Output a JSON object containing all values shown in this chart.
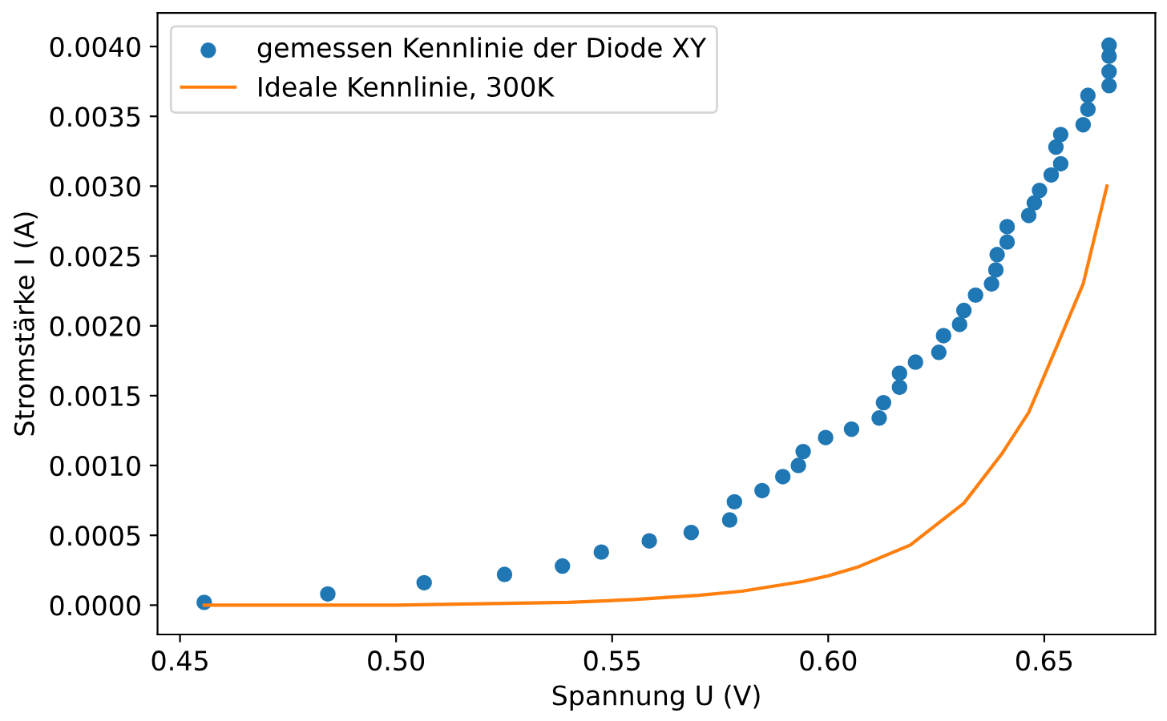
{
  "chart_data": {
    "type": "scatter",
    "xlabel": "Spannung U (V)",
    "ylabel": "Stromstärke I (A)",
    "xlim": [
      0.4448,
      0.6757
    ],
    "ylim": [
      -0.00021,
      0.00424
    ],
    "xticks": [
      {
        "value": 0.45,
        "label": "0.45"
      },
      {
        "value": 0.5,
        "label": "0.50"
      },
      {
        "value": 0.55,
        "label": "0.55"
      },
      {
        "value": 0.6,
        "label": "0.60"
      },
      {
        "value": 0.65,
        "label": "0.65"
      }
    ],
    "yticks": [
      {
        "value": 0,
        "label": "0.0000"
      },
      {
        "value": 0.0005,
        "label": "0.0005"
      },
      {
        "value": 0.001,
        "label": "0.0010"
      },
      {
        "value": 0.0015,
        "label": "0.0015"
      },
      {
        "value": 0.002,
        "label": "0.0020"
      },
      {
        "value": 0.0025,
        "label": "0.0025"
      },
      {
        "value": 0.003,
        "label": "0.0030"
      },
      {
        "value": 0.0035,
        "label": "0.0035"
      },
      {
        "value": 0.004,
        "label": "0.0040"
      }
    ],
    "legend": "top left",
    "grid": false,
    "series": [
      {
        "name": "gemessen Kennlinie der Diode XY",
        "marker": "circle",
        "color": "#1f77b4",
        "x": [
          0.4556,
          0.4842,
          0.5065,
          0.5251,
          0.5385,
          0.5475,
          0.5586,
          0.5683,
          0.5772,
          0.5783,
          0.5847,
          0.5895,
          0.5931,
          0.5942,
          0.5994,
          0.6054,
          0.6118,
          0.6128,
          0.6165,
          0.6165,
          0.6202,
          0.6256,
          0.6267,
          0.6304,
          0.6314,
          0.6341,
          0.6378,
          0.6388,
          0.6391,
          0.6414,
          0.6414,
          0.6464,
          0.6477,
          0.6489,
          0.6516,
          0.6538,
          0.6527,
          0.6538,
          0.659,
          0.6601,
          0.6601,
          0.665,
          0.665,
          0.665,
          0.665
        ],
        "values": [
          2e-05,
          8e-05,
          0.00016,
          0.00022,
          0.00028,
          0.00038,
          0.00046,
          0.00052,
          0.00061,
          0.00074,
          0.00082,
          0.00092,
          0.001,
          0.0011,
          0.0012,
          0.00126,
          0.00134,
          0.00145,
          0.00156,
          0.00166,
          0.00174,
          0.00181,
          0.00193,
          0.00201,
          0.00211,
          0.00222,
          0.0023,
          0.0024,
          0.00251,
          0.0026,
          0.00271,
          0.00279,
          0.00288,
          0.00297,
          0.00308,
          0.00316,
          0.00328,
          0.00337,
          0.00344,
          0.00355,
          0.00365,
          0.00372,
          0.00382,
          0.00393,
          0.00401
        ]
      },
      {
        "name": "Ideale Kennlinie, 300K",
        "type": "line",
        "marker": "none",
        "line_style": "solid",
        "color": "#ff7f0e",
        "x": [
          0.4556,
          0.48,
          0.5,
          0.52,
          0.54,
          0.555,
          0.57,
          0.58,
          0.5942,
          0.6,
          0.6066,
          0.619,
          0.6314,
          0.6401,
          0.6464,
          0.653,
          0.659,
          0.6645
        ],
        "values": [
          0.0,
          0.0,
          0.0,
          1e-05,
          2e-05,
          4e-05,
          7e-05,
          0.0001,
          0.00017,
          0.00021,
          0.00027,
          0.00043,
          0.00073,
          0.00108,
          0.00138,
          0.00186,
          0.0023,
          0.003
        ]
      }
    ]
  }
}
